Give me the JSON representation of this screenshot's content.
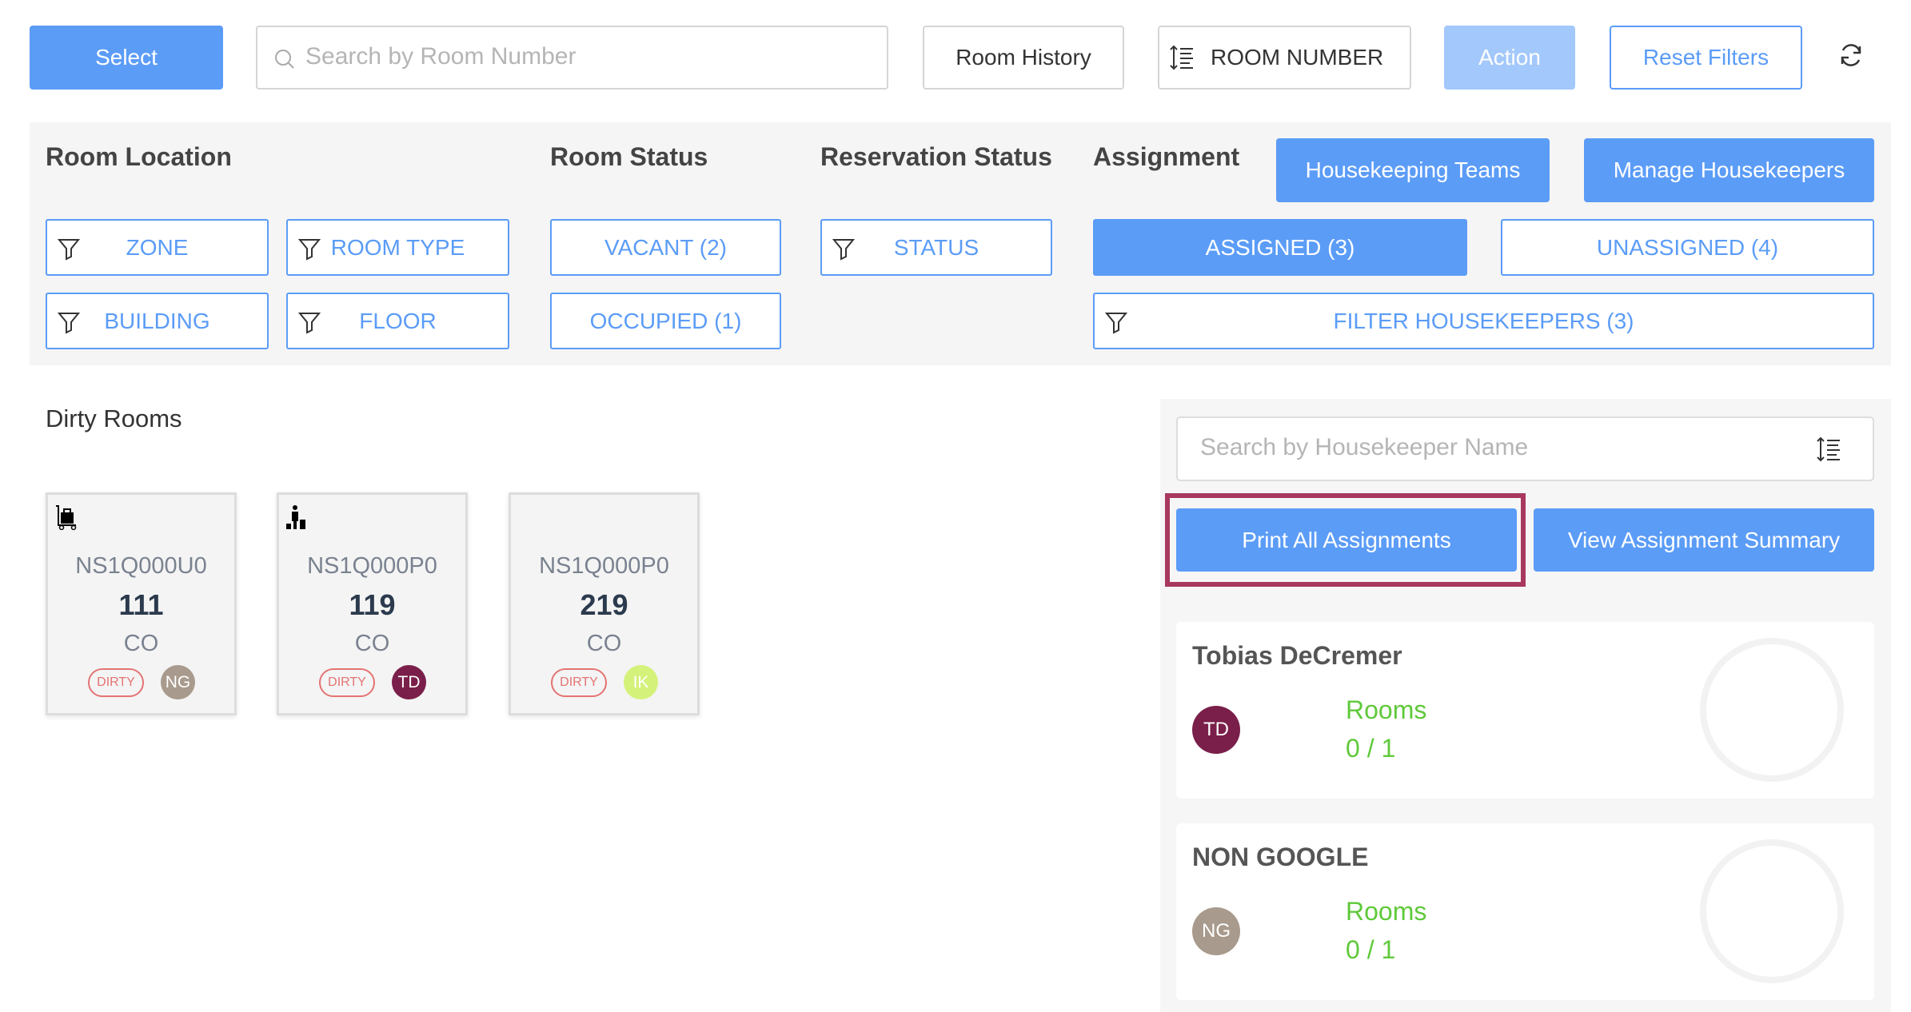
{
  "toolbar": {
    "select": "Select",
    "search_placeholder": "Search by Room Number",
    "room_history": "Room History",
    "sort_label": "ROOM NUMBER",
    "action": "Action",
    "reset_filters": "Reset Filters"
  },
  "filters": {
    "room_location": {
      "title": "Room Location",
      "zone": "ZONE",
      "room_type": "ROOM TYPE",
      "building": "BUILDING",
      "floor": "FLOOR"
    },
    "room_status": {
      "title": "Room Status",
      "vacant": "VACANT (2)",
      "occupied": "OCCUPIED (1)"
    },
    "reservation_status": {
      "title": "Reservation Status",
      "status": "STATUS"
    },
    "assignment": {
      "title": "Assignment",
      "housekeeping_teams": "Housekeeping Teams",
      "manage_housekeepers": "Manage Housekeepers",
      "assigned": "ASSIGNED (3)",
      "unassigned": "UNASSIGNED (4)",
      "filter_housekeepers": "FILTER HOUSEKEEPERS (3)"
    }
  },
  "rooms": {
    "title": "Dirty Rooms",
    "items": [
      {
        "icon": "luggage-cart-icon",
        "code": "NS1Q000U0",
        "number": "111",
        "status": "CO",
        "badge": "DIRTY",
        "initials": "NG",
        "color": "#a89a8c"
      },
      {
        "icon": "traveler-icon",
        "code": "NS1Q000P0",
        "number": "119",
        "status": "CO",
        "badge": "DIRTY",
        "initials": "TD",
        "color": "#7a1f4a"
      },
      {
        "icon": "",
        "code": "NS1Q000P0",
        "number": "219",
        "status": "CO",
        "badge": "DIRTY",
        "initials": "IK",
        "color": "#d4f27a"
      }
    ]
  },
  "housekeepers": {
    "search_placeholder": "Search by Housekeeper Name",
    "print_all": "Print All Assignments",
    "view_summary": "View Assignment Summary",
    "highlight_color": "#a8385c",
    "items": [
      {
        "name": "Tobias DeCremer",
        "initials": "TD",
        "color": "#7a1f4a",
        "rooms_label": "Rooms",
        "rooms_value": "0 / 1"
      },
      {
        "name": "NON GOOGLE",
        "initials": "NG",
        "color": "#a89a8c",
        "rooms_label": "Rooms",
        "rooms_value": "0 / 1"
      }
    ]
  }
}
